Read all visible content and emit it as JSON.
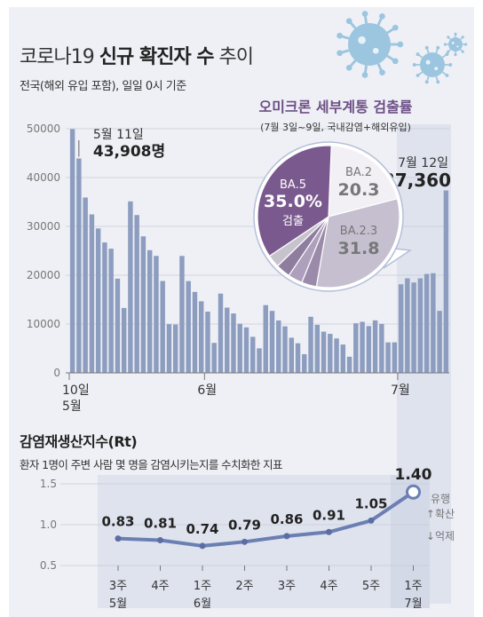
{
  "header": {
    "title_prefix": "코로나19 ",
    "title_bold": "신규 확진자 수",
    "title_suffix": " 추이",
    "subtitle": "전국(해외 유입 포함), 일일 0시 기준"
  },
  "colors": {
    "bar": "#8d9dc0",
    "highlight_band": "#dfe3ee",
    "line": "#6b7fb3",
    "virus": "#9cc5e0",
    "pie_ba5": "#7a5a8e",
    "pie_ba2": "#f2f0f4",
    "pie_ba23": "#c5bfcf",
    "pie_other": "#9b8aa9",
    "accent_title": "#6d4f86"
  },
  "chart_data": [
    {
      "type": "bar",
      "ylim": [
        0,
        50000
      ],
      "yticks": [
        "50000",
        "40000",
        "30000",
        "20000",
        "10000",
        "0"
      ],
      "x_labels": [
        {
          "text": "10일",
          "index": 0
        },
        {
          "text": "5월",
          "index": 0
        },
        {
          "text": "6월",
          "index": 21
        },
        {
          "text": "7월",
          "index": 51
        }
      ],
      "values": [
        49933,
        43908,
        35907,
        32451,
        29581,
        26714,
        25434,
        19292,
        13296,
        35117,
        32322,
        27966,
        25125,
        23956,
        18816,
        9975,
        9898,
        23945,
        18805,
        16584,
        14660,
        12542,
        6141,
        16230,
        13358,
        12165,
        10059,
        9315,
        7382,
        5022,
        13875,
        12696,
        10733,
        9528,
        7196,
        6062,
        3828,
        11489,
        9827,
        8442,
        7991,
        7052,
        5803,
        3305,
        10161,
        10455,
        9584,
        10754,
        10029,
        6242,
        6253,
        18142,
        19365,
        18513,
        19360,
        20267,
        20410,
        12693,
        37360
      ],
      "annotations": [
        {
          "date": "5월 11일",
          "value": "43,908명",
          "index": 1
        },
        {
          "date": "7월 12일",
          "value": "37,360",
          "index": 58
        }
      ]
    },
    {
      "type": "pie",
      "title": "오미크론 세부계통 검출률",
      "subtitle": "(7월 3일~9일, 국내감염+해외유입)",
      "slices": [
        {
          "label": "BA.5",
          "value": 35.0,
          "display": "35.0%",
          "extra": "검출"
        },
        {
          "label": "BA.2",
          "value": 20.3,
          "display": "20.3"
        },
        {
          "label": "BA.2.3",
          "value": 31.8,
          "display": "31.8"
        },
        {
          "label": "",
          "value": 3.4
        },
        {
          "label": "",
          "value": 3.3
        },
        {
          "label": "",
          "value": 3.3
        },
        {
          "label": "",
          "value": 2.9
        }
      ]
    },
    {
      "type": "line",
      "title": "감염재생산지수(Rt)",
      "subtitle": "환자 1명이 주변 사람 몇 명을 감염시키는지를 수치화한 지표",
      "ylim": [
        0.5,
        1.5
      ],
      "yticks": [
        "1.5",
        "1.0",
        "0.5"
      ],
      "categories": [
        {
          "week": "3주",
          "month": "5월"
        },
        {
          "week": "4주",
          "month": ""
        },
        {
          "week": "1주",
          "month": "6월"
        },
        {
          "week": "2주",
          "month": ""
        },
        {
          "week": "3주",
          "month": ""
        },
        {
          "week": "4주",
          "month": ""
        },
        {
          "week": "5주",
          "month": ""
        },
        {
          "week": "1주",
          "month": "7월"
        }
      ],
      "values": [
        0.83,
        0.81,
        0.74,
        0.79,
        0.86,
        0.91,
        1.05,
        1.4
      ],
      "labels": [
        "0.83",
        "0.81",
        "0.74",
        "0.79",
        "0.86",
        "0.91",
        "1.05",
        "1.40"
      ],
      "legend": {
        "title": "유행",
        "up": "↑확산",
        "down": "↓억제"
      }
    }
  ]
}
